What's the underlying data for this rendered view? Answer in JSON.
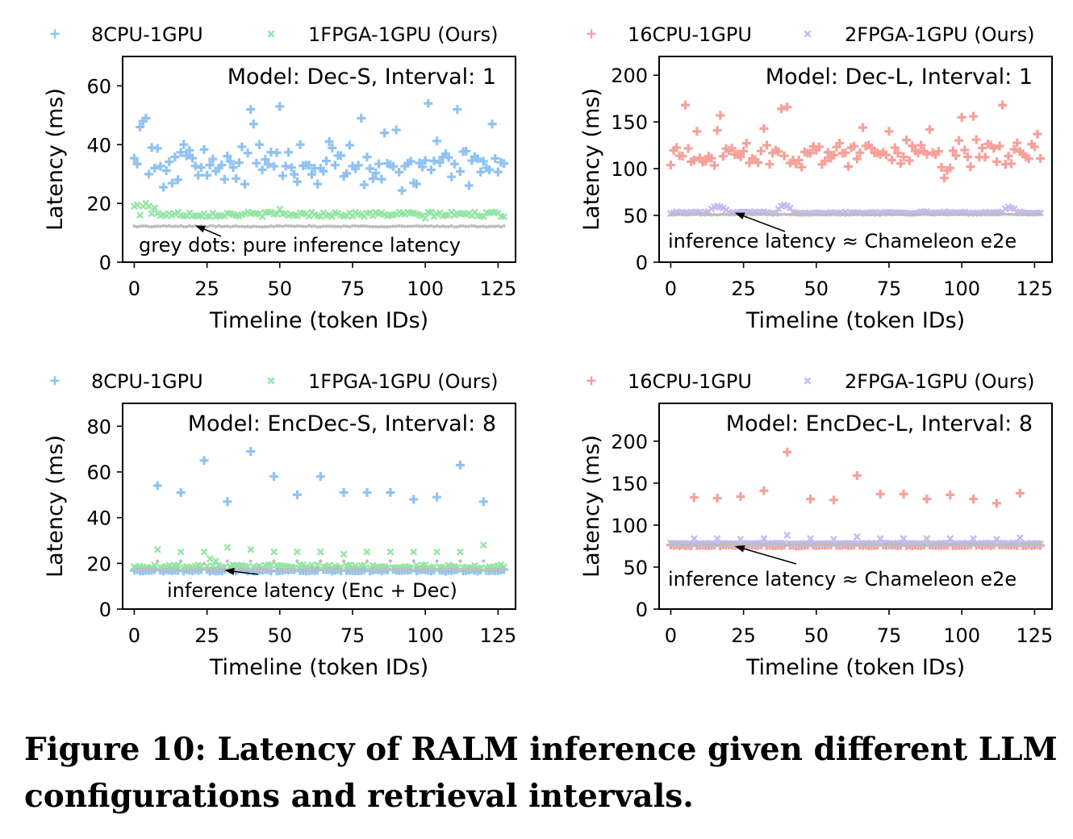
{
  "caption": "Figure 10: Latency of RALM inference given different LLM configurations and retrieval intervals.",
  "colors": {
    "blue": "#8fc3f2",
    "green": "#93e6a5",
    "salmon": "#f5a19a",
    "lavender": "#c8b8f0",
    "grey": "#bdbdbd"
  },
  "chart_data": [
    {
      "type": "scatter",
      "title": "Model: Dec-S, Interval: 1",
      "xlabel": "Timeline (token IDs)",
      "ylabel": "Latency (ms)",
      "xlim": [
        -4,
        131
      ],
      "ylim": [
        0,
        70
      ],
      "xticks": [
        0,
        25,
        50,
        75,
        100,
        125
      ],
      "yticks": [
        0,
        20,
        40,
        60
      ],
      "legend": "top",
      "annotation": {
        "text": "grey dots: pure inference latency",
        "target": [
          21,
          12.5
        ]
      },
      "series": [
        {
          "name": "8CPU-1GPU",
          "marker": "plus",
          "color": "blue",
          "pattern": "noisy",
          "base": 33,
          "noise": 5,
          "spikes": [
            [
              2,
              46
            ],
            [
              3,
              48
            ],
            [
              4,
              49
            ],
            [
              6,
              39
            ],
            [
              17,
              40
            ],
            [
              40,
              52
            ],
            [
              41,
              47
            ],
            [
              43,
              40
            ],
            [
              50,
              53
            ],
            [
              57,
              40
            ],
            [
              67,
              41
            ],
            [
              78,
              49
            ],
            [
              86,
              44
            ],
            [
              90,
              45
            ],
            [
              101,
              54
            ],
            [
              111,
              52
            ],
            [
              123,
              47
            ]
          ]
        },
        {
          "name": "1FPGA-1GPU (Ours)",
          "marker": "x",
          "color": "green",
          "pattern": "flat",
          "base": 16.3,
          "noise": 0.8,
          "spikes": [
            [
              0,
              19
            ],
            [
              1,
              19.5
            ],
            [
              2,
              16
            ],
            [
              3,
              19
            ],
            [
              4,
              20
            ],
            [
              5,
              19
            ],
            [
              7,
              18.5
            ],
            [
              50,
              18
            ],
            [
              100,
              15
            ]
          ]
        },
        {
          "name": "pure inference latency",
          "marker": "dot",
          "color": "grey",
          "pattern": "flat",
          "base": 12.2,
          "noise": 0.2,
          "spikes": []
        }
      ]
    },
    {
      "type": "scatter",
      "title": "Model: Dec-L, Interval: 1",
      "xlabel": "Timeline (token IDs)",
      "ylabel": "Latency (ms)",
      "xlim": [
        -4,
        131
      ],
      "ylim": [
        0,
        220
      ],
      "xticks": [
        0,
        25,
        50,
        75,
        100,
        125
      ],
      "yticks": [
        0,
        50,
        100,
        150,
        200
      ],
      "legend": "top",
      "annotation": {
        "text": "inference latency ≈ Chameleon e2e",
        "target": [
          22,
          53
        ]
      },
      "series": [
        {
          "name": "16CPU-1GPU",
          "marker": "plus",
          "color": "salmon",
          "pattern": "noisy",
          "base": 116,
          "noise": 10,
          "spikes": [
            [
              5,
              168
            ],
            [
              9,
              140
            ],
            [
              16,
              141
            ],
            [
              17,
              157
            ],
            [
              32,
              143
            ],
            [
              38,
              164
            ],
            [
              40,
              166
            ],
            [
              66,
              144
            ],
            [
              75,
              140
            ],
            [
              89,
              142
            ],
            [
              94,
              90
            ],
            [
              100,
              155
            ],
            [
              104,
              156
            ],
            [
              114,
              168
            ],
            [
              126,
              137
            ]
          ]
        },
        {
          "name": "2FPGA-1GPU (Ours)",
          "marker": "x",
          "color": "lavender",
          "pattern": "flat",
          "base": 53,
          "noise": 1,
          "spikes": [
            [
              14,
              57
            ],
            [
              15,
              59
            ],
            [
              16,
              60
            ],
            [
              17,
              59
            ],
            [
              18,
              58
            ],
            [
              19,
              56
            ],
            [
              37,
              57
            ],
            [
              38,
              60
            ],
            [
              39,
              61
            ],
            [
              40,
              60
            ],
            [
              41,
              58
            ],
            [
              115,
              57
            ],
            [
              116,
              59
            ],
            [
              117,
              58
            ],
            [
              118,
              57
            ]
          ]
        },
        {
          "name": "inference latency",
          "marker": "dot",
          "color": "grey",
          "pattern": "flat",
          "base": 51,
          "noise": 0.4,
          "spikes": []
        }
      ]
    },
    {
      "type": "scatter",
      "title": "Model: EncDec-S, Interval: 8",
      "xlabel": "Timeline (token IDs)",
      "ylabel": "Latency (ms)",
      "xlim": [
        -4,
        131
      ],
      "ylim": [
        0,
        90
      ],
      "xticks": [
        0,
        25,
        50,
        75,
        100,
        125
      ],
      "yticks": [
        0,
        20,
        40,
        60,
        80
      ],
      "legend": "top",
      "annotation": {
        "text": "inference latency (Enc + Dec)",
        "target": [
          31,
          17
        ]
      },
      "series": [
        {
          "name": "8CPU-1GPU",
          "marker": "plus",
          "color": "blue",
          "pattern": "periodic",
          "base": 17,
          "noise": 0.4,
          "spikes": [
            [
              8,
              54
            ],
            [
              16,
              51
            ],
            [
              24,
              65
            ],
            [
              32,
              47
            ],
            [
              40,
              69
            ],
            [
              48,
              58
            ],
            [
              56,
              50
            ],
            [
              64,
              58
            ],
            [
              72,
              51
            ],
            [
              80,
              51
            ],
            [
              88,
              51
            ],
            [
              96,
              48
            ],
            [
              104,
              49
            ],
            [
              112,
              63
            ],
            [
              120,
              47
            ]
          ]
        },
        {
          "name": "1FPGA-1GPU (Ours)",
          "marker": "x",
          "color": "green",
          "pattern": "flat",
          "base": 18.6,
          "noise": 0.8,
          "spikes": [
            [
              8,
              26
            ],
            [
              16,
              25
            ],
            [
              24,
              25
            ],
            [
              26,
              22
            ],
            [
              28,
              21
            ],
            [
              32,
              27
            ],
            [
              40,
              26
            ],
            [
              48,
              25
            ],
            [
              56,
              25
            ],
            [
              64,
              25
            ],
            [
              72,
              24
            ],
            [
              80,
              25
            ],
            [
              88,
              25
            ],
            [
              96,
              25
            ],
            [
              104,
              25
            ],
            [
              112,
              25
            ],
            [
              120,
              28
            ]
          ]
        },
        {
          "name": "inference latency",
          "marker": "dot",
          "color": "grey",
          "pattern": "flat",
          "base": 17.3,
          "noise": 0.2,
          "spikes": [
            [
              8,
              21
            ],
            [
              16,
              21
            ],
            [
              24,
              20
            ],
            [
              32,
              21
            ],
            [
              40,
              21
            ],
            [
              48,
              21
            ],
            [
              56,
              21
            ],
            [
              64,
              21
            ],
            [
              72,
              21
            ],
            [
              80,
              21
            ],
            [
              88,
              21
            ],
            [
              96,
              21
            ],
            [
              104,
              21
            ],
            [
              112,
              21
            ],
            [
              120,
              21
            ]
          ]
        }
      ]
    },
    {
      "type": "scatter",
      "title": "Model: EncDec-L, Interval: 8",
      "xlabel": "Timeline (token IDs)",
      "ylabel": "Latency (ms)",
      "xlim": [
        -4,
        131
      ],
      "ylim": [
        0,
        245
      ],
      "xticks": [
        0,
        25,
        50,
        75,
        100,
        125
      ],
      "yticks": [
        0,
        50,
        100,
        150,
        200
      ],
      "legend": "top",
      "annotation": {
        "text": "inference latency ≈ Chameleon e2e",
        "target": [
          22,
          75
        ]
      },
      "series": [
        {
          "name": "16CPU-1GPU",
          "marker": "plus",
          "color": "salmon",
          "pattern": "periodic",
          "base": 76,
          "noise": 0.6,
          "spikes": [
            [
              8,
              133
            ],
            [
              16,
              132
            ],
            [
              24,
              134
            ],
            [
              32,
              141
            ],
            [
              40,
              187
            ],
            [
              48,
              131
            ],
            [
              56,
              130
            ],
            [
              64,
              159
            ],
            [
              72,
              137
            ],
            [
              80,
              137
            ],
            [
              88,
              131
            ],
            [
              96,
              136
            ],
            [
              104,
              131
            ],
            [
              112,
              126
            ],
            [
              120,
              138
            ]
          ]
        },
        {
          "name": "2FPGA-1GPU (Ours)",
          "marker": "x",
          "color": "lavender",
          "pattern": "flat",
          "base": 78,
          "noise": 0.6,
          "spikes": [
            [
              8,
              84
            ],
            [
              16,
              84
            ],
            [
              24,
              83
            ],
            [
              32,
              84
            ],
            [
              40,
              88
            ],
            [
              48,
              84
            ],
            [
              56,
              83
            ],
            [
              64,
              86
            ],
            [
              72,
              84
            ],
            [
              80,
              84
            ],
            [
              88,
              84
            ],
            [
              96,
              84
            ],
            [
              104,
              84
            ],
            [
              112,
              83
            ],
            [
              120,
              85
            ]
          ]
        },
        {
          "name": "inference latency",
          "marker": "dot",
          "color": "grey",
          "pattern": "flat",
          "base": 77,
          "noise": 0.2,
          "spikes": []
        }
      ]
    }
  ]
}
